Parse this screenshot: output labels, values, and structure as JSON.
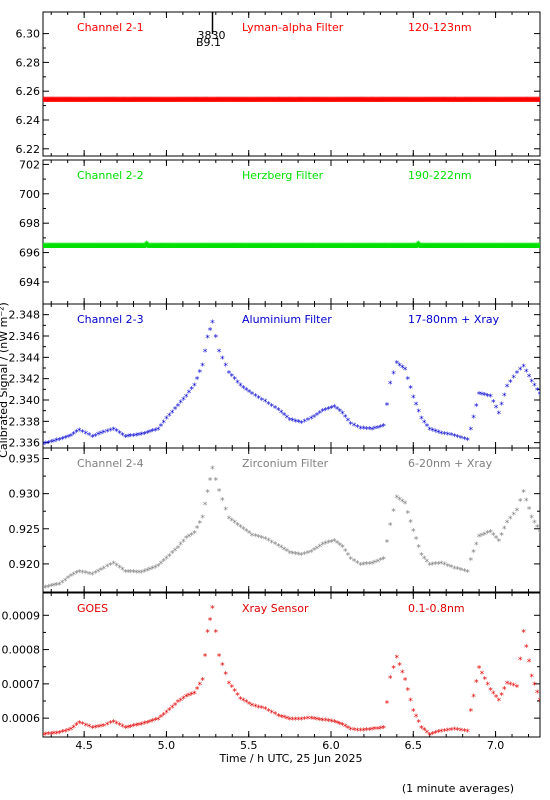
{
  "chart_data": {
    "type": "scatter",
    "x_axis": {
      "label": "Time / h UTC, 25 Jun 2025",
      "range": [
        4.25,
        7.27
      ],
      "ticks": [
        4.5,
        5.0,
        5.5,
        6.0,
        6.5,
        7.0
      ],
      "tick_labels": [
        "4.5",
        "5.0",
        "5.5",
        "6.0",
        "6.5",
        "7.0"
      ]
    },
    "y_axis_label": "Calibrated Signal / (nW m⁻²)",
    "footnote": "(1 minute averages)",
    "annotation": {
      "text1": "3830",
      "text2": "B9.1",
      "x": 5.28
    },
    "panels": [
      {
        "name": "Channel 2-1",
        "filter": "Lyman-alpha Filter",
        "band": "120-123nm",
        "color": "#ff0000",
        "ylim": [
          6.215,
          6.315
        ],
        "ticks": [
          6.22,
          6.24,
          6.26,
          6.28,
          6.3
        ],
        "tick_labels": [
          "6.22",
          "6.24",
          "6.26",
          "6.28",
          "6.30"
        ],
        "series": [
          [
            4.25,
            6.254
          ],
          [
            7.27,
            6.254
          ]
        ]
      },
      {
        "name": "Channel 2-2",
        "filter": "Herzberg Filter",
        "band": "190-222nm",
        "color": "#00e000",
        "ylim": [
          692.5,
          702.3
        ],
        "ticks": [
          694,
          696,
          698,
          700,
          702
        ],
        "tick_labels": [
          "694",
          "696",
          "698",
          "700",
          "702"
        ],
        "series": [
          [
            4.25,
            696.45
          ],
          [
            4.87,
            696.45
          ],
          [
            4.88,
            696.58
          ],
          [
            4.89,
            696.45
          ],
          [
            6.52,
            696.45
          ],
          [
            6.53,
            696.58
          ],
          [
            6.54,
            696.45
          ],
          [
            7.27,
            696.45
          ]
        ]
      },
      {
        "name": "Channel 2-3",
        "filter": "Aluminium Filter",
        "band": "17-80nm + Xray",
        "color": "#0000d0",
        "ylim": [
          2.3355,
          2.349
        ],
        "ticks": [
          2.336,
          2.338,
          2.34,
          2.342,
          2.344,
          2.346,
          2.348
        ],
        "tick_labels": [
          "2.336",
          "2.338",
          "2.340",
          "2.342",
          "2.344",
          "2.346",
          "2.348"
        ],
        "series": [
          [
            4.25,
            2.3358
          ],
          [
            4.35,
            2.3362
          ],
          [
            4.42,
            2.3366
          ],
          [
            4.47,
            2.3371
          ],
          [
            4.55,
            2.3365
          ],
          [
            4.62,
            2.3369
          ],
          [
            4.68,
            2.3372
          ],
          [
            4.75,
            2.3365
          ],
          [
            4.85,
            2.3367
          ],
          [
            4.95,
            2.3372
          ],
          [
            5.0,
            2.3382
          ],
          [
            5.07,
            2.3394
          ],
          [
            5.12,
            2.3403
          ],
          [
            5.17,
            2.3413
          ],
          [
            5.22,
            2.3432
          ],
          [
            5.25,
            2.3458
          ],
          [
            5.28,
            2.3472
          ],
          [
            5.32,
            2.3445
          ],
          [
            5.38,
            2.3425
          ],
          [
            5.45,
            2.3413
          ],
          [
            5.52,
            2.3405
          ],
          [
            5.6,
            2.3398
          ],
          [
            5.68,
            2.339
          ],
          [
            5.75,
            2.3381
          ],
          [
            5.82,
            2.3378
          ],
          [
            5.88,
            2.3382
          ],
          [
            5.95,
            2.3389
          ],
          [
            6.02,
            2.3393
          ],
          [
            6.07,
            2.3387
          ],
          [
            6.12,
            2.3377
          ],
          [
            6.18,
            2.3373
          ],
          [
            6.25,
            2.3372
          ],
          [
            6.32,
            2.3375
          ],
          [
            6.36,
            2.3415
          ],
          [
            6.4,
            2.3434
          ],
          [
            6.45,
            2.3428
          ],
          [
            6.5,
            2.3402
          ],
          [
            6.55,
            2.3382
          ],
          [
            6.6,
            2.3372
          ],
          [
            6.67,
            2.3368
          ],
          [
            6.75,
            2.3366
          ],
          [
            6.83,
            2.3362
          ],
          [
            6.85,
            2.3372
          ],
          [
            6.9,
            2.3405
          ],
          [
            6.97,
            2.3403
          ],
          [
            7.02,
            2.3387
          ],
          [
            7.07,
            2.3412
          ],
          [
            7.13,
            2.3425
          ],
          [
            7.17,
            2.3431
          ],
          [
            7.22,
            2.3417
          ],
          [
            7.27,
            2.3405
          ]
        ]
      },
      {
        "name": "Channel 2-4",
        "filter": "Zirconium Filter",
        "band": "6-20nm + Xray",
        "color": "#808080",
        "ylim": [
          0.916,
          0.9365
        ],
        "ticks": [
          0.92,
          0.925,
          0.93,
          0.935
        ],
        "tick_labels": [
          "0.920",
          "0.925",
          "0.930",
          "0.935"
        ],
        "series": [
          [
            4.25,
            0.9165
          ],
          [
            4.35,
            0.917
          ],
          [
            4.42,
            0.9182
          ],
          [
            4.47,
            0.9188
          ],
          [
            4.55,
            0.9184
          ],
          [
            4.62,
            0.9193
          ],
          [
            4.68,
            0.92
          ],
          [
            4.75,
            0.9188
          ],
          [
            4.85,
            0.9187
          ],
          [
            4.95,
            0.9196
          ],
          [
            5.0,
            0.9207
          ],
          [
            5.07,
            0.9222
          ],
          [
            5.12,
            0.9236
          ],
          [
            5.17,
            0.9243
          ],
          [
            5.22,
            0.9265
          ],
          [
            5.25,
            0.9302
          ],
          [
            5.28,
            0.9335
          ],
          [
            5.32,
            0.9303
          ],
          [
            5.38,
            0.9264
          ],
          [
            5.45,
            0.9252
          ],
          [
            5.52,
            0.924
          ],
          [
            5.6,
            0.9235
          ],
          [
            5.68,
            0.9225
          ],
          [
            5.75,
            0.9215
          ],
          [
            5.82,
            0.9212
          ],
          [
            5.88,
            0.9216
          ],
          [
            5.95,
            0.9227
          ],
          [
            6.02,
            0.9232
          ],
          [
            6.07,
            0.9223
          ],
          [
            6.12,
            0.9206
          ],
          [
            6.18,
            0.9198
          ],
          [
            6.25,
            0.92
          ],
          [
            6.32,
            0.9206
          ],
          [
            6.36,
            0.9255
          ],
          [
            6.4,
            0.9294
          ],
          [
            6.45,
            0.9285
          ],
          [
            6.5,
            0.9246
          ],
          [
            6.55,
            0.9212
          ],
          [
            6.6,
            0.9198
          ],
          [
            6.67,
            0.92
          ],
          [
            6.75,
            0.9193
          ],
          [
            6.83,
            0.9188
          ],
          [
            6.85,
            0.9205
          ],
          [
            6.9,
            0.9238
          ],
          [
            6.97,
            0.9245
          ],
          [
            7.02,
            0.9232
          ],
          [
            7.07,
            0.9258
          ],
          [
            7.13,
            0.9275
          ],
          [
            7.17,
            0.9302
          ],
          [
            7.22,
            0.9265
          ],
          [
            7.27,
            0.9245
          ]
        ]
      },
      {
        "name": "GOES",
        "filter": "Xray Sensor",
        "band": "0.1-0.8nm",
        "color": "#e00000",
        "ylim": [
          0.000545,
          0.000965
        ],
        "ticks": [
          0.0006,
          0.0007,
          0.0008,
          0.0009
        ],
        "tick_labels": [
          "0.0006",
          "0.0007",
          "0.0008",
          "0.0009"
        ],
        "series": [
          [
            4.25,
            0.00055
          ],
          [
            4.35,
            0.000555
          ],
          [
            4.42,
            0.000565
          ],
          [
            4.47,
            0.000585
          ],
          [
            4.55,
            0.00057
          ],
          [
            4.62,
            0.000575
          ],
          [
            4.68,
            0.000588
          ],
          [
            4.75,
            0.00057
          ],
          [
            4.85,
            0.00058
          ],
          [
            4.95,
            0.000595
          ],
          [
            5.0,
            0.000615
          ],
          [
            5.07,
            0.000645
          ],
          [
            5.12,
            0.000662
          ],
          [
            5.17,
            0.00067
          ],
          [
            5.22,
            0.00071
          ],
          [
            5.25,
            0.00085
          ],
          [
            5.28,
            0.00092
          ],
          [
            5.32,
            0.00078
          ],
          [
            5.38,
            0.0007
          ],
          [
            5.45,
            0.000655
          ],
          [
            5.52,
            0.000635
          ],
          [
            5.6,
            0.000625
          ],
          [
            5.68,
            0.000605
          ],
          [
            5.75,
            0.000595
          ],
          [
            5.82,
            0.000595
          ],
          [
            5.88,
            0.000598
          ],
          [
            5.95,
            0.000592
          ],
          [
            6.02,
            0.000588
          ],
          [
            6.07,
            0.000578
          ],
          [
            6.12,
            0.000565
          ],
          [
            6.18,
            0.000562
          ],
          [
            6.25,
            0.000565
          ],
          [
            6.32,
            0.00057
          ],
          [
            6.36,
            0.000715
          ],
          [
            6.4,
            0.000775
          ],
          [
            6.45,
            0.00071
          ],
          [
            6.5,
            0.00062
          ],
          [
            6.55,
            0.00057
          ],
          [
            6.6,
            0.00055
          ],
          [
            6.67,
            0.00056
          ],
          [
            6.75,
            0.000565
          ],
          [
            6.83,
            0.00056
          ],
          [
            6.85,
            0.00062
          ],
          [
            6.9,
            0.000745
          ],
          [
            6.97,
            0.00068
          ],
          [
            7.02,
            0.00065
          ],
          [
            7.07,
            0.0007
          ],
          [
            7.13,
            0.00069
          ],
          [
            7.17,
            0.00085
          ],
          [
            7.22,
            0.00072
          ],
          [
            7.27,
            0.00065
          ]
        ]
      }
    ]
  }
}
